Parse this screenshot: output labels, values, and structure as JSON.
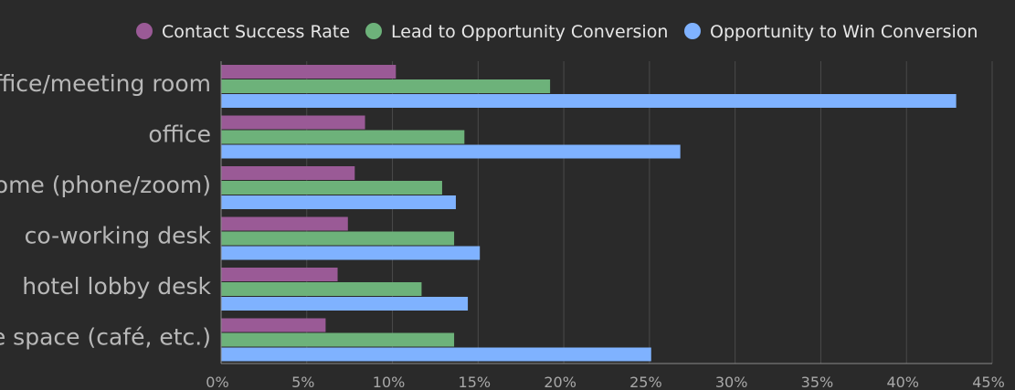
{
  "chart_data": {
    "type": "bar",
    "orientation": "horizontal",
    "categories": [
      "office/meeting room",
      "office",
      "home (phone/zoom)",
      "co-working desk",
      "hotel lobby desk",
      "live space (café, etc.)"
    ],
    "series": [
      {
        "name": "Contact Success Rate",
        "color": "#9a5a96",
        "values": [
          10.2,
          8.4,
          7.8,
          7.4,
          6.8,
          6.1
        ]
      },
      {
        "name": "Lead to Opportunity Conversion",
        "color": "#6db27a",
        "values": [
          19.2,
          14.2,
          12.9,
          13.6,
          11.7,
          13.6
        ]
      },
      {
        "name": "Opportunity to Win Conversion",
        "color": "#7fb2ff",
        "values": [
          42.9,
          26.8,
          13.7,
          15.1,
          14.4,
          25.1
        ]
      }
    ],
    "x_ticks": [
      "0%",
      "5%",
      "10%",
      "15%",
      "20%",
      "25%",
      "30%",
      "35%",
      "40%",
      "45%"
    ],
    "xlim": [
      0,
      45
    ],
    "grid": true,
    "legend_position": "top",
    "colors": {
      "background": "#2a2a2a",
      "grid": "#4a4a4a",
      "axis": "#8a8a8a"
    }
  }
}
